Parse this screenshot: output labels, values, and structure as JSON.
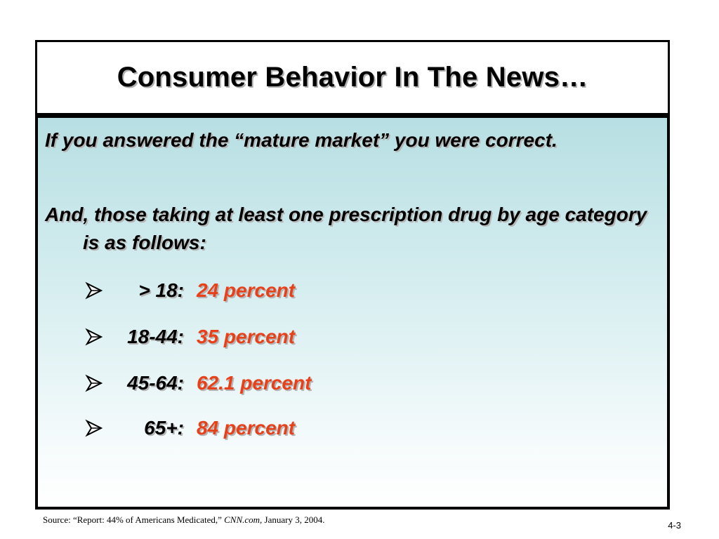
{
  "slide": {
    "title": "Consumer Behavior In The News…",
    "paragraphs": [
      "If you answered the “mature market” you were correct.",
      "And, those taking at least one prescription drug by age category is as follows:"
    ],
    "bullet_icon": "arrowhead-bullet-icon",
    "bullets": [
      {
        "range": "> 18:",
        "value": "24 percent"
      },
      {
        "range": "18-44:",
        "value": "35 percent"
      },
      {
        "range": "45-64:",
        "value": "62.1 percent"
      },
      {
        "range": "65+:",
        "value": "84 percent"
      }
    ],
    "value_color": "#e8411a",
    "source": {
      "prefix": "Source:  “Report: 44% of Americans Medicated,” ",
      "publication": "CNN.com,",
      "date": " January 3, 2004."
    },
    "page_number": "4-3"
  }
}
